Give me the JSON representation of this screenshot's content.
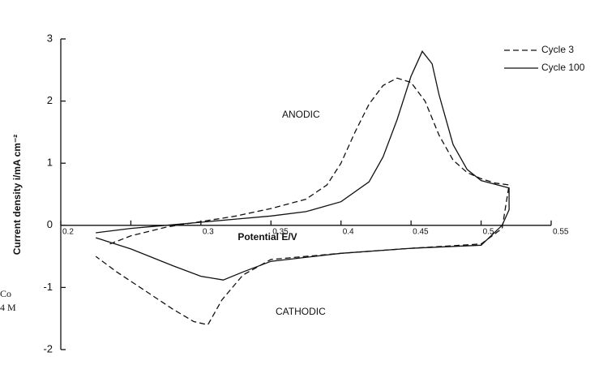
{
  "chart_data": {
    "type": "line",
    "y_label": "Current density i/mA cm⁻²",
    "x_label": "Potential E/V",
    "annotations": [
      "ANODIC",
      "CATHODIC"
    ],
    "edge_fragments": [
      "Co",
      "4 M"
    ],
    "xlim": [
      0.2,
      0.55
    ],
    "ylim": [
      -2,
      3
    ],
    "xticks": [
      0.2,
      {
        "value": 0.25,
        "label": null
      },
      0.3,
      0.35,
      0.4,
      0.45,
      0.5,
      0.55
    ],
    "yticks": [
      -2,
      -1,
      0,
      1,
      2,
      3
    ],
    "legend": "top-right",
    "series": [
      {
        "name": "Cycle 3",
        "color": "#111111",
        "dash": true,
        "x": [
          0.235,
          0.25,
          0.275,
          0.3,
          0.325,
          0.35,
          0.375,
          0.39,
          0.4,
          0.41,
          0.42,
          0.43,
          0.44,
          0.45,
          0.46,
          0.47,
          0.48,
          0.49,
          0.5,
          0.51,
          0.52,
          0.515,
          0.5,
          0.45,
          0.4,
          0.35,
          0.33,
          0.315,
          0.305,
          0.295,
          0.28,
          0.26,
          0.24,
          0.225
        ],
        "values": [
          -0.3,
          -0.17,
          -0.03,
          0.06,
          0.15,
          0.27,
          0.42,
          0.65,
          1.0,
          1.5,
          1.95,
          2.25,
          2.37,
          2.3,
          2.0,
          1.45,
          1.05,
          0.85,
          0.75,
          0.68,
          0.65,
          -0.05,
          -0.3,
          -0.37,
          -0.45,
          -0.55,
          -0.8,
          -1.2,
          -1.6,
          -1.55,
          -1.35,
          -1.05,
          -0.75,
          -0.5
        ]
      },
      {
        "name": "Cycle 100",
        "color": "#111111",
        "dash": false,
        "x": [
          0.225,
          0.25,
          0.275,
          0.3,
          0.325,
          0.35,
          0.375,
          0.4,
          0.42,
          0.43,
          0.44,
          0.45,
          0.458,
          0.465,
          0.47,
          0.48,
          0.49,
          0.5,
          0.52,
          0.52,
          0.515,
          0.5,
          0.45,
          0.4,
          0.35,
          0.33,
          0.316,
          0.3,
          0.28,
          0.25,
          0.225
        ],
        "values": [
          -0.12,
          -0.05,
          0.0,
          0.05,
          0.1,
          0.15,
          0.22,
          0.38,
          0.7,
          1.1,
          1.7,
          2.4,
          2.8,
          2.6,
          2.1,
          1.3,
          0.9,
          0.72,
          0.6,
          0.25,
          0.0,
          -0.32,
          -0.37,
          -0.45,
          -0.58,
          -0.75,
          -0.88,
          -0.82,
          -0.65,
          -0.38,
          -0.2
        ]
      }
    ]
  }
}
